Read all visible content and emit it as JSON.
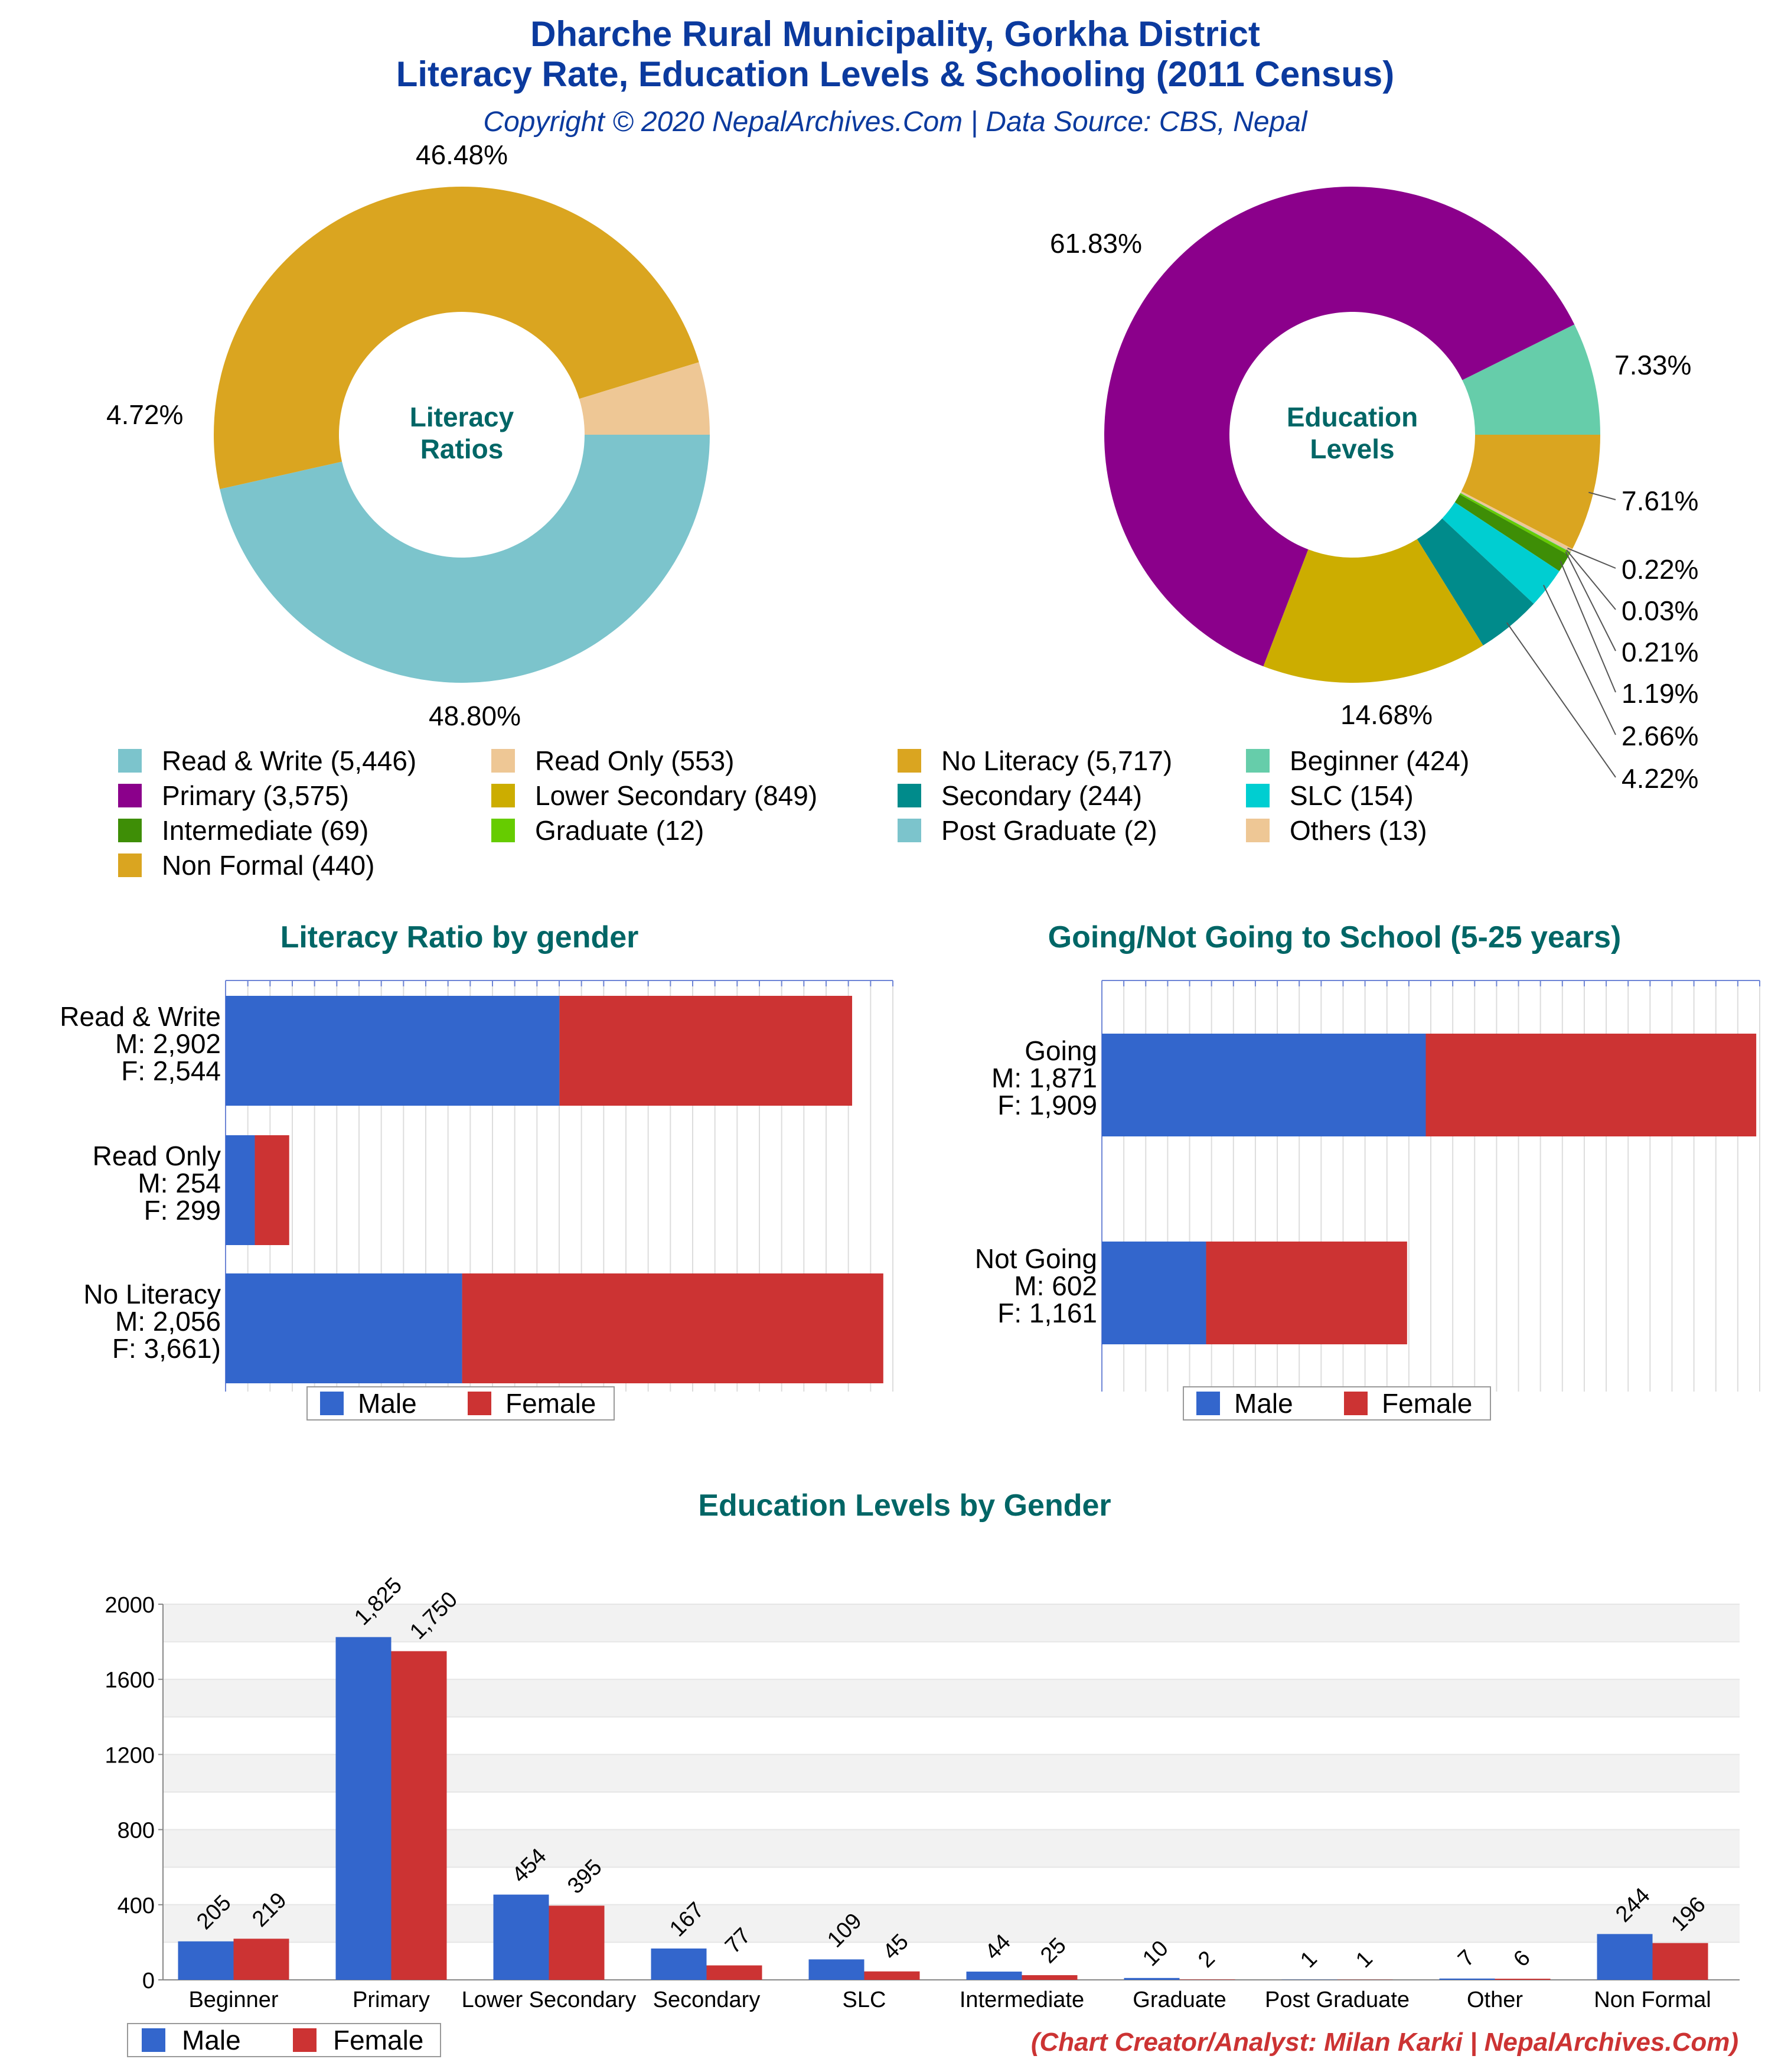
{
  "header": {
    "title_line1": "Dharche Rural Municipality, Gorkha District",
    "title_line2": "Literacy Rate, Education Levels & Schooling (2011 Census)",
    "copyright": "Copyright © 2020 NepalArchives.Com | Data Source: CBS, Nepal"
  },
  "credit": "(Chart Creator/Analyst: Milan Karki | NepalArchives.Com)",
  "colors": {
    "title_blue": "#0b3a9e",
    "heading_teal": "#006666",
    "male": "#3366cc",
    "female": "#cc3333",
    "credit_red": "#cc3333"
  },
  "legend_items": [
    {
      "label": "Read & Write (5,446)",
      "color": "#7cc4cc"
    },
    {
      "label": "Read Only (553)",
      "color": "#eec795"
    },
    {
      "label": "No Literacy (5,717)",
      "color": "#daa520"
    },
    {
      "label": "Beginner (424)",
      "color": "#66cdaa"
    },
    {
      "label": "Primary (3,575)",
      "color": "#8b008b"
    },
    {
      "label": "Lower Secondary (849)",
      "color": "#ccad00"
    },
    {
      "label": "Secondary (244)",
      "color": "#008b8b"
    },
    {
      "label": "SLC (154)",
      "color": "#00ced1"
    },
    {
      "label": "Intermediate (69)",
      "color": "#3e8e06"
    },
    {
      "label": "Graduate (12)",
      "color": "#66cc00"
    },
    {
      "label": "Post Graduate (2)",
      "color": "#7cc4cc"
    },
    {
      "label": "Others (13)",
      "color": "#eec795"
    },
    {
      "label": "Non Formal (440)",
      "color": "#daa520"
    }
  ],
  "chart_data": [
    {
      "type": "pie",
      "style": "donut",
      "center_label": [
        "Literacy",
        "Ratios"
      ],
      "slices": [
        {
          "label": "Read & Write",
          "value": 5446,
          "percent_label": "46.48%",
          "color": "#7cc4cc"
        },
        {
          "label": "No Literacy",
          "value": 5717,
          "percent_label": "48.80%",
          "color": "#daa520"
        },
        {
          "label": "Read Only",
          "value": 553,
          "percent_label": "4.72%",
          "color": "#eec795"
        }
      ]
    },
    {
      "type": "pie",
      "style": "donut",
      "center_label": [
        "Education",
        "Levels"
      ],
      "slices": [
        {
          "label": "Beginner",
          "value": 424,
          "percent_label": "7.33%",
          "color": "#66cdaa"
        },
        {
          "label": "Non Formal",
          "value": 440,
          "percent_label": "7.61%",
          "color": "#daa520"
        },
        {
          "label": "Others",
          "value": 13,
          "percent_label": "0.22%",
          "color": "#eec795"
        },
        {
          "label": "Post Graduate",
          "value": 2,
          "percent_label": "0.03%",
          "color": "#7cc4cc"
        },
        {
          "label": "Graduate",
          "value": 12,
          "percent_label": "0.21%",
          "color": "#66cc00"
        },
        {
          "label": "Intermediate",
          "value": 69,
          "percent_label": "1.19%",
          "color": "#3e8e06"
        },
        {
          "label": "SLC",
          "value": 154,
          "percent_label": "2.66%",
          "color": "#00ced1"
        },
        {
          "label": "Secondary",
          "value": 244,
          "percent_label": "4.22%",
          "color": "#008b8b"
        },
        {
          "label": "Lower Secondary",
          "value": 849,
          "percent_label": "14.68%",
          "color": "#ccad00"
        },
        {
          "label": "Primary",
          "value": 3575,
          "percent_label": "61.83%",
          "color": "#8b008b"
        }
      ]
    },
    {
      "type": "bar",
      "orientation": "horizontal",
      "stacked": true,
      "title": "Literacy Ratio by gender",
      "xlim": [
        0,
        5800
      ],
      "categories": [
        {
          "name": "Read & Write",
          "m_label": "M: 2,902",
          "f_label": "F: 2,544"
        },
        {
          "name": "Read Only",
          "m_label": "M: 254",
          "f_label": "F: 299"
        },
        {
          "name": "No Literacy",
          "m_label": "M: 2,056",
          "f_label": "F: 3,661)"
        }
      ],
      "series": [
        {
          "name": "Male",
          "values": [
            2902,
            254,
            2056
          ]
        },
        {
          "name": "Female",
          "values": [
            2544,
            299,
            3661
          ]
        }
      ],
      "legend": [
        "Male",
        "Female"
      ]
    },
    {
      "type": "bar",
      "orientation": "horizontal",
      "stacked": true,
      "title": "Going/Not Going to School (5-25 years)",
      "xlim": [
        0,
        3800
      ],
      "categories": [
        {
          "name": "Going",
          "m_label": "M: 1,871",
          "f_label": "F: 1,909"
        },
        {
          "name": "Not Going",
          "m_label": "M: 602",
          "f_label": "F: 1,161"
        }
      ],
      "series": [
        {
          "name": "Male",
          "values": [
            1871,
            602
          ]
        },
        {
          "name": "Female",
          "values": [
            1909,
            1161
          ]
        }
      ],
      "legend": [
        "Male",
        "Female"
      ]
    },
    {
      "type": "bar",
      "orientation": "vertical",
      "title": "Education Levels by Gender",
      "categories": [
        "Beginner",
        "Primary",
        "Lower Secondary",
        "Secondary",
        "SLC",
        "Intermediate",
        "Graduate",
        "Post Graduate",
        "Other",
        "Non Formal"
      ],
      "series": [
        {
          "name": "Male",
          "values": [
            205,
            1825,
            454,
            167,
            109,
            44,
            10,
            1,
            7,
            244
          ],
          "value_labels": [
            "205",
            "1,825",
            "454",
            "167",
            "109",
            "44",
            "10",
            "1",
            "7",
            "244"
          ]
        },
        {
          "name": "Female",
          "values": [
            219,
            1750,
            395,
            77,
            45,
            25,
            2,
            1,
            6,
            196
          ],
          "value_labels": [
            "219",
            "1,750",
            "395",
            "77",
            "45",
            "25",
            "2",
            "1",
            "6",
            "196"
          ]
        }
      ],
      "ylim": [
        0,
        2000
      ],
      "yticks": [
        0,
        400,
        800,
        1200,
        1600,
        2000
      ],
      "legend": [
        "Male",
        "Female"
      ]
    }
  ]
}
